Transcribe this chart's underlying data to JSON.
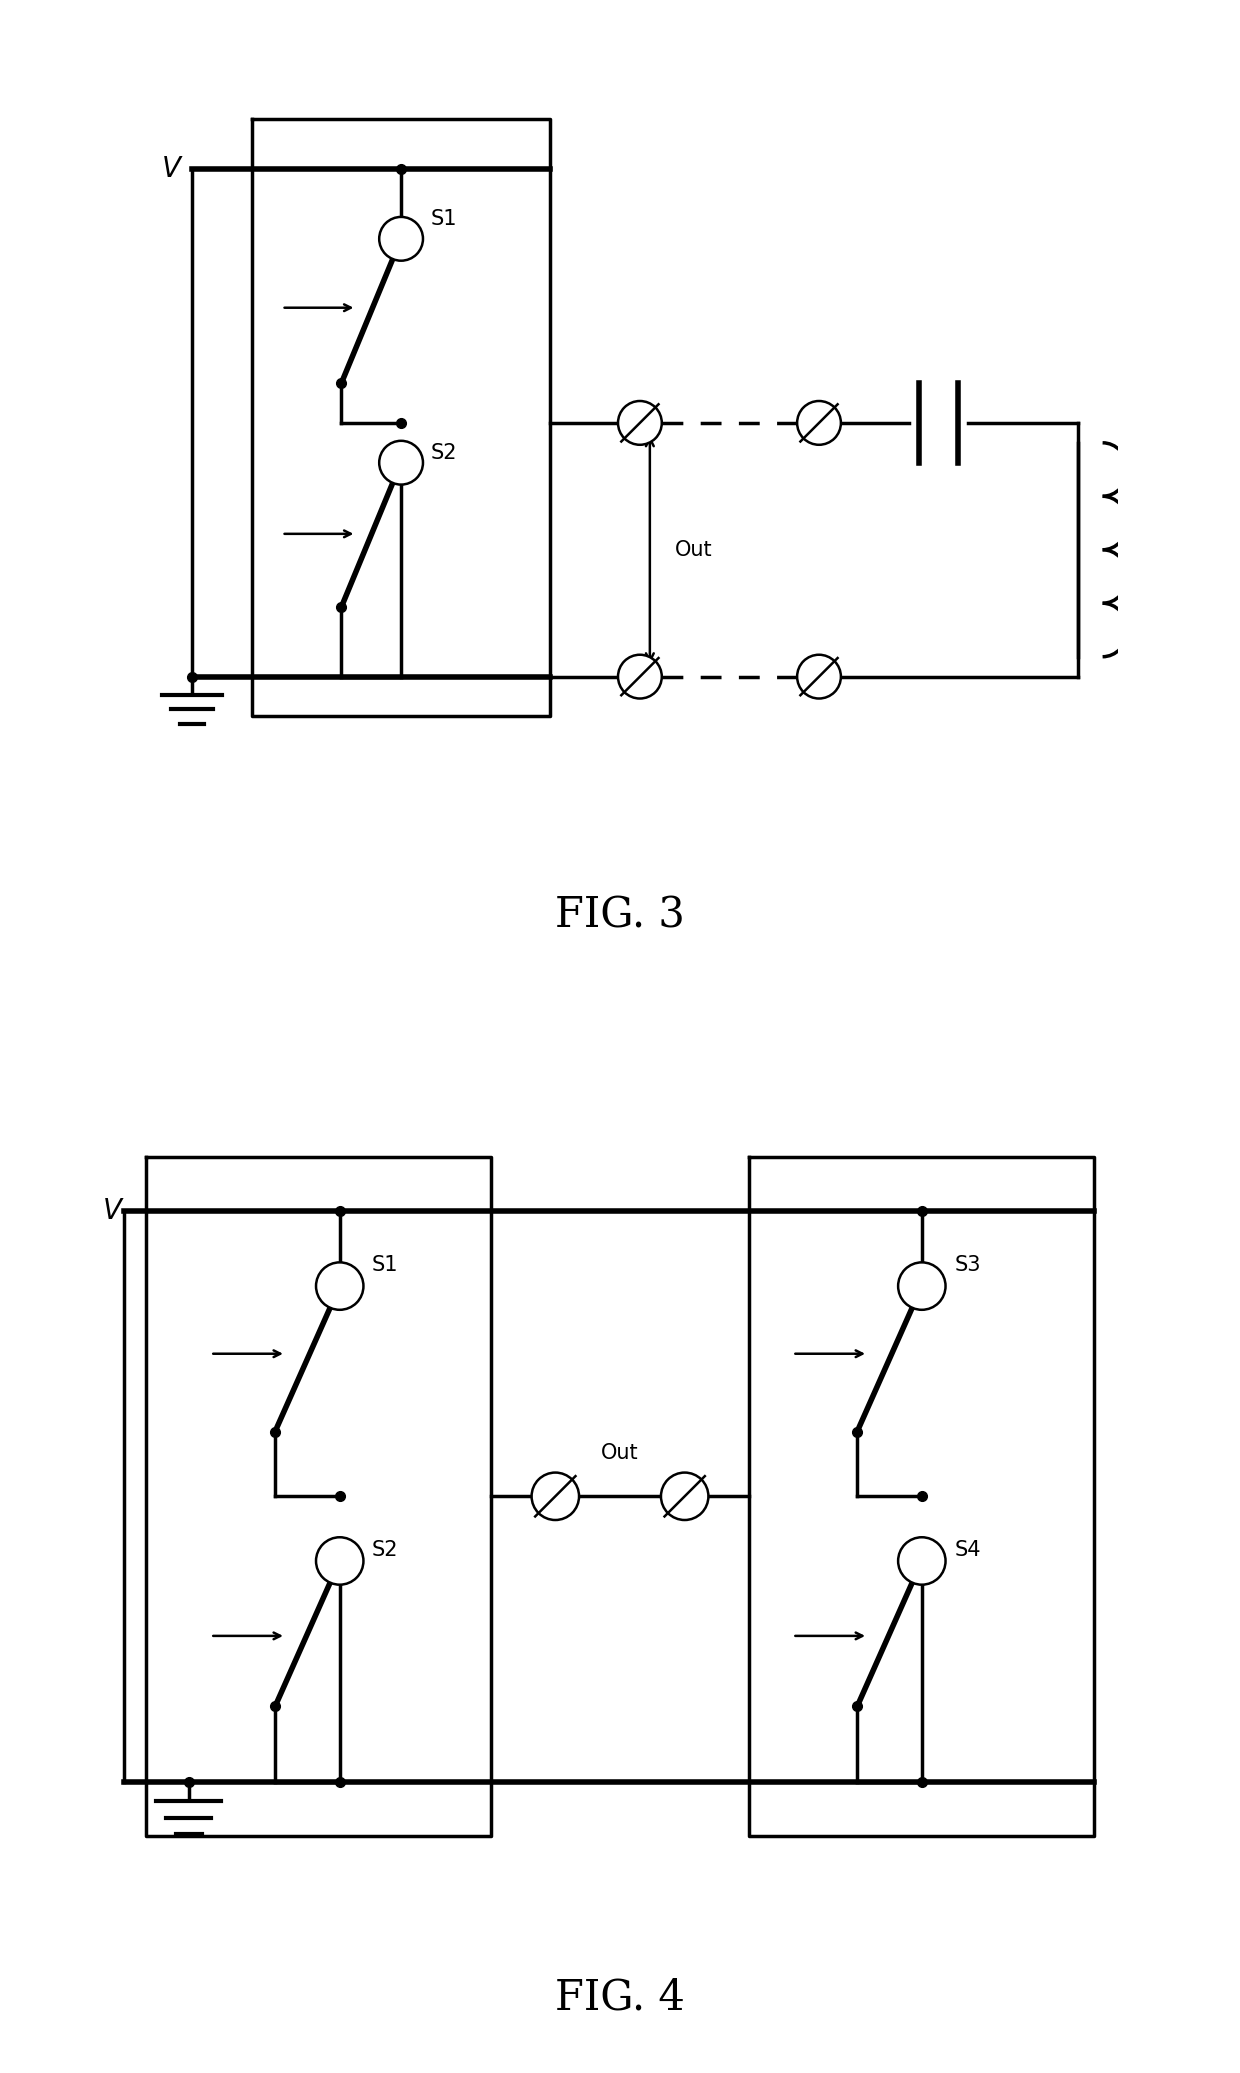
{
  "line_color": "#000000",
  "bg_color": "#ffffff",
  "lw": 2.5,
  "lw_thick": 4.0,
  "lw_thin": 1.8,
  "fig3_title": "FIG. 3",
  "fig4_title": "FIG. 4",
  "V_label": "V",
  "S1_label": "S1",
  "S2_label": "S2",
  "S3_label": "S3",
  "S4_label": "S4",
  "Out_label": "Out"
}
